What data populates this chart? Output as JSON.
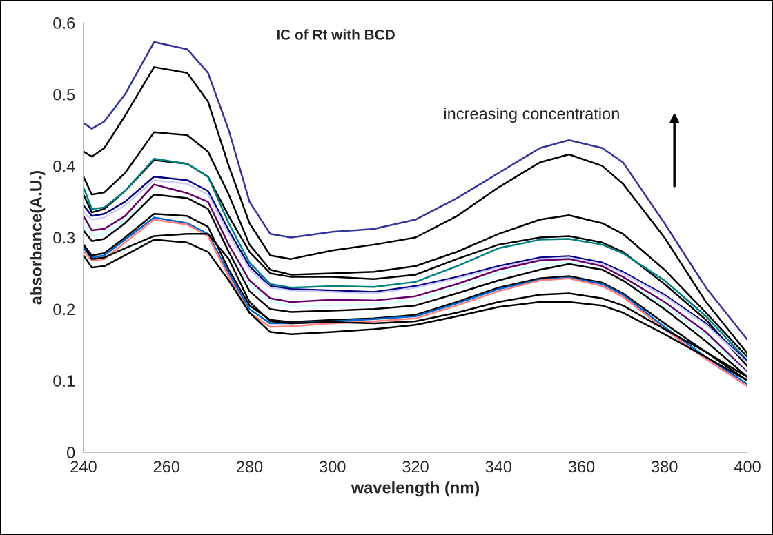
{
  "chart_data": {
    "type": "line",
    "title": "IC of Rt with BCD",
    "xlabel": "wavelength (nm)",
    "ylabel": "absorbance(A.U.)",
    "annotations": [
      "increasing concentration"
    ],
    "x": [
      240,
      242,
      245,
      250,
      257,
      265,
      270,
      275,
      280,
      285,
      290,
      300,
      310,
      320,
      330,
      340,
      350,
      357,
      365,
      370,
      380,
      390,
      400
    ],
    "xlim": [
      240,
      400
    ],
    "xticks": [
      240,
      260,
      280,
      300,
      320,
      340,
      360,
      380,
      400
    ],
    "ylim": [
      0,
      0.6
    ],
    "yticks": [
      0,
      0.1,
      0.2,
      0.3,
      0.4,
      0.5,
      0.6
    ],
    "grid": false,
    "legend": false,
    "marker": "none",
    "line_style": "solid",
    "series": [
      {
        "color": "#333399",
        "values": [
          0.46,
          0.452,
          0.462,
          0.5,
          0.573,
          0.563,
          0.53,
          0.45,
          0.35,
          0.305,
          0.3,
          0.308,
          0.312,
          0.325,
          0.355,
          0.39,
          0.425,
          0.436,
          0.425,
          0.405,
          0.32,
          0.23,
          0.157
        ]
      },
      {
        "color": "#000000",
        "values": [
          0.42,
          0.413,
          0.425,
          0.47,
          0.538,
          0.53,
          0.49,
          0.4,
          0.32,
          0.275,
          0.27,
          0.282,
          0.29,
          0.3,
          0.33,
          0.37,
          0.405,
          0.416,
          0.4,
          0.375,
          0.3,
          0.21,
          0.138
        ]
      },
      {
        "color": "#000000",
        "values": [
          0.385,
          0.36,
          0.363,
          0.39,
          0.447,
          0.443,
          0.42,
          0.36,
          0.29,
          0.255,
          0.248,
          0.25,
          0.252,
          0.26,
          0.28,
          0.305,
          0.325,
          0.331,
          0.32,
          0.305,
          0.255,
          0.195,
          0.133
        ]
      },
      {
        "color": "#000000",
        "values": [
          0.36,
          0.335,
          0.34,
          0.365,
          0.408,
          0.403,
          0.385,
          0.33,
          0.28,
          0.25,
          0.245,
          0.245,
          0.242,
          0.248,
          0.27,
          0.29,
          0.3,
          0.302,
          0.293,
          0.28,
          0.235,
          0.185,
          0.12
        ]
      },
      {
        "color": "#008080",
        "values": [
          0.37,
          0.34,
          0.342,
          0.365,
          0.41,
          0.403,
          0.385,
          0.32,
          0.265,
          0.235,
          0.23,
          0.232,
          0.231,
          0.238,
          0.26,
          0.285,
          0.297,
          0.298,
          0.29,
          0.278,
          0.24,
          0.19,
          0.128
        ]
      },
      {
        "color": "#000080",
        "values": [
          0.345,
          0.33,
          0.333,
          0.35,
          0.385,
          0.38,
          0.365,
          0.31,
          0.26,
          0.232,
          0.228,
          0.226,
          0.224,
          0.232,
          0.245,
          0.26,
          0.272,
          0.274,
          0.265,
          0.252,
          0.22,
          0.18,
          0.127
        ]
      },
      {
        "color": "#ccccff",
        "values": [
          0.335,
          0.325,
          0.328,
          0.345,
          0.38,
          0.375,
          0.36,
          0.305,
          0.255,
          0.23,
          0.226,
          0.224,
          0.222,
          0.23,
          0.243,
          0.258,
          0.27,
          0.272,
          0.263,
          0.25,
          0.218,
          0.178,
          0.125
        ]
      },
      {
        "color": "#660066",
        "values": [
          0.33,
          0.31,
          0.312,
          0.33,
          0.374,
          0.362,
          0.35,
          0.29,
          0.24,
          0.215,
          0.21,
          0.213,
          0.212,
          0.218,
          0.235,
          0.255,
          0.268,
          0.27,
          0.26,
          0.245,
          0.21,
          0.168,
          0.112
        ]
      },
      {
        "color": "#ccffff",
        "values": [
          0.32,
          0.303,
          0.305,
          0.325,
          0.36,
          0.355,
          0.34,
          0.28,
          0.235,
          0.21,
          0.205,
          0.205,
          0.206,
          0.212,
          0.23,
          0.25,
          0.262,
          0.265,
          0.255,
          0.24,
          0.205,
          0.163,
          0.11
        ]
      },
      {
        "color": "#000000",
        "values": [
          0.31,
          0.295,
          0.298,
          0.32,
          0.36,
          0.355,
          0.34,
          0.28,
          0.225,
          0.2,
          0.196,
          0.198,
          0.2,
          0.205,
          0.222,
          0.24,
          0.255,
          0.263,
          0.255,
          0.24,
          0.2,
          0.155,
          0.105
        ]
      },
      {
        "color": "#000000",
        "values": [
          0.29,
          0.275,
          0.278,
          0.3,
          0.333,
          0.33,
          0.315,
          0.255,
          0.205,
          0.185,
          0.182,
          0.185,
          0.187,
          0.192,
          0.21,
          0.23,
          0.243,
          0.246,
          0.237,
          0.222,
          0.18,
          0.14,
          0.1
        ]
      },
      {
        "color": "#0066cc",
        "values": [
          0.285,
          0.272,
          0.275,
          0.297,
          0.328,
          0.32,
          0.305,
          0.25,
          0.2,
          0.18,
          0.18,
          0.183,
          0.186,
          0.19,
          0.208,
          0.228,
          0.241,
          0.244,
          0.235,
          0.22,
          0.175,
          0.133,
          0.095
        ]
      },
      {
        "color": "#ff8080",
        "values": [
          0.28,
          0.268,
          0.27,
          0.293,
          0.325,
          0.318,
          0.302,
          0.245,
          0.195,
          0.175,
          0.176,
          0.18,
          0.183,
          0.187,
          0.205,
          0.225,
          0.24,
          0.243,
          0.232,
          0.217,
          0.172,
          0.13,
          0.092
        ]
      },
      {
        "color": "#000000",
        "values": [
          0.29,
          0.27,
          0.272,
          0.285,
          0.302,
          0.305,
          0.305,
          0.27,
          0.21,
          0.183,
          0.18,
          0.182,
          0.18,
          0.183,
          0.195,
          0.21,
          0.22,
          0.222,
          0.215,
          0.205,
          0.172,
          0.14,
          0.105
        ]
      },
      {
        "color": "#000000",
        "values": [
          0.275,
          0.258,
          0.26,
          0.275,
          0.297,
          0.293,
          0.28,
          0.24,
          0.195,
          0.168,
          0.165,
          0.168,
          0.172,
          0.178,
          0.19,
          0.203,
          0.21,
          0.21,
          0.205,
          0.195,
          0.165,
          0.133,
          0.1
        ]
      }
    ]
  }
}
